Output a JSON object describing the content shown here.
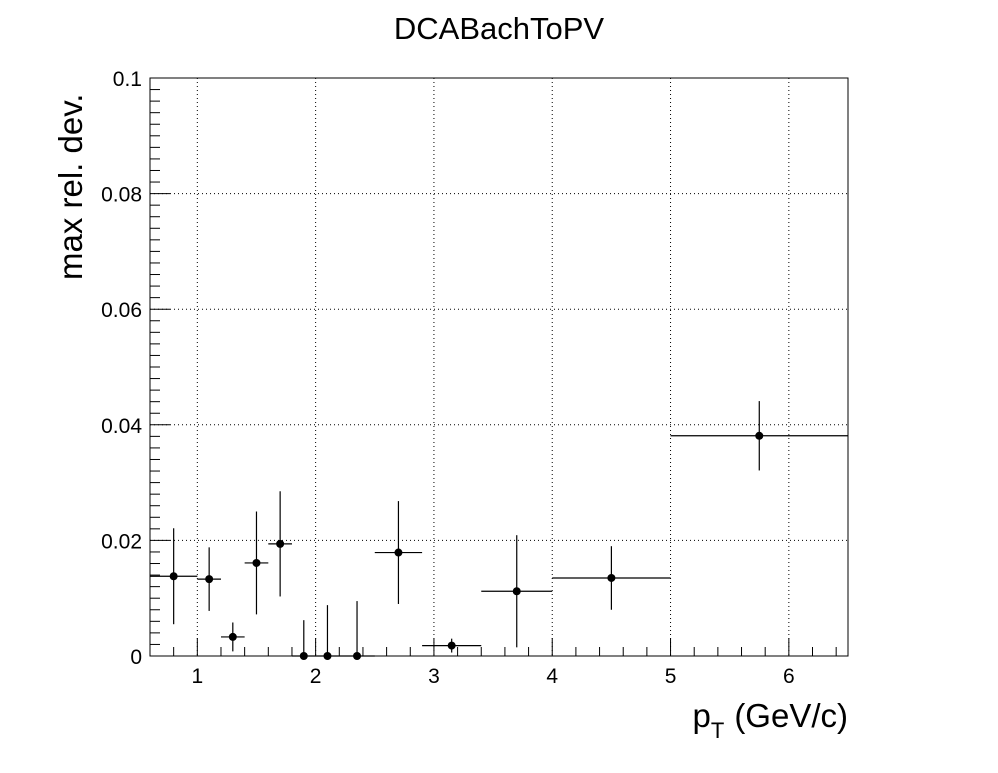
{
  "chart_data": {
    "type": "scatter",
    "title": "DCABachToPV",
    "xlabel_main": "p",
    "xlabel_sub": "T",
    "xlabel_unit": "(GeV/c)",
    "ylabel": "max rel. dev.",
    "xlim": [
      0.6,
      6.5
    ],
    "ylim": [
      0,
      0.1
    ],
    "x_ticks": [
      "1",
      "2",
      "3",
      "4",
      "5",
      "6"
    ],
    "y_ticks": [
      "0",
      "0.02",
      "0.04",
      "0.06",
      "0.08",
      "0.1"
    ],
    "grid": true,
    "series": [
      {
        "points": [
          {
            "x": 0.8,
            "y": 0.0138,
            "xlo": 0.6,
            "xhi": 1.0,
            "yerr": 0.0083
          },
          {
            "x": 1.1,
            "y": 0.0133,
            "xlo": 1.0,
            "xhi": 1.2,
            "yerr": 0.0055
          },
          {
            "x": 1.3,
            "y": 0.0033,
            "xlo": 1.2,
            "xhi": 1.4,
            "yerr": 0.0025
          },
          {
            "x": 1.5,
            "y": 0.0161,
            "xlo": 1.4,
            "xhi": 1.6,
            "yerr": 0.0089
          },
          {
            "x": 1.7,
            "y": 0.0194,
            "xlo": 1.6,
            "xhi": 1.8,
            "yerr": 0.0091
          },
          {
            "x": 1.9,
            "y": 0.0,
            "xlo": 1.8,
            "xhi": 2.0,
            "yerr": 0.0062
          },
          {
            "x": 2.1,
            "y": 0.0,
            "xlo": 2.0,
            "xhi": 2.2,
            "yerr": 0.0088
          },
          {
            "x": 2.35,
            "y": 0.0,
            "xlo": 2.2,
            "xhi": 2.5,
            "yerr": 0.0095
          },
          {
            "x": 2.7,
            "y": 0.0179,
            "xlo": 2.5,
            "xhi": 2.9,
            "yerr": 0.0089
          },
          {
            "x": 3.15,
            "y": 0.0018,
            "xlo": 2.9,
            "xhi": 3.4,
            "yerr": 0.0012
          },
          {
            "x": 3.7,
            "y": 0.0112,
            "xlo": 3.4,
            "xhi": 4.0,
            "yerr": 0.0097
          },
          {
            "x": 4.5,
            "y": 0.0135,
            "xlo": 4.0,
            "xhi": 5.0,
            "yerr": 0.0055
          },
          {
            "x": 5.75,
            "y": 0.0381,
            "xlo": 5.0,
            "xhi": 6.5,
            "yerr": 0.006
          }
        ]
      }
    ]
  }
}
